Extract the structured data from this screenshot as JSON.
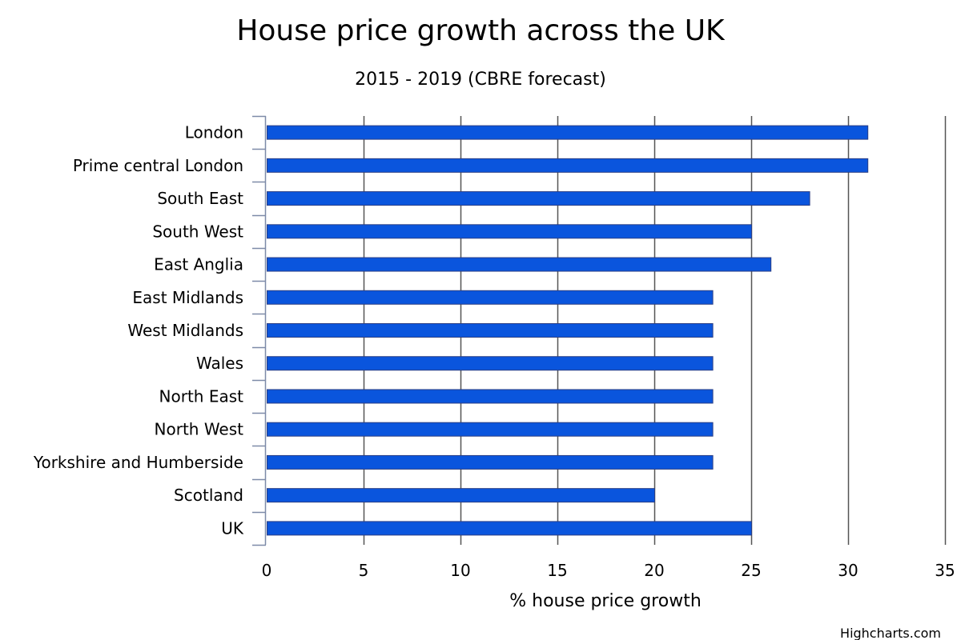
{
  "colors": {
    "bar_fill": "#0a55dd",
    "bar_stroke": "#2b3f85",
    "grid": "#555555",
    "axis": "#7d8aa8"
  },
  "credits": "Highcharts.com",
  "chart_data": {
    "type": "bar",
    "orientation": "horizontal",
    "title": "House price growth across the UK",
    "subtitle": "2015 - 2019 (CBRE forecast)",
    "xlabel": "% house price growth",
    "ylabel": "",
    "categories": [
      "London",
      "Prime central London",
      "South East",
      "South West",
      "East Anglia",
      "East Midlands",
      "West Midlands",
      "Wales",
      "North East",
      "North West",
      "Yorkshire and Humberside",
      "Scotland",
      "UK"
    ],
    "values": [
      31,
      31,
      28,
      25,
      26,
      23,
      23,
      23,
      23,
      23,
      23,
      20,
      25
    ],
    "xlim": [
      0,
      35
    ],
    "ticks": [
      0,
      5,
      10,
      15,
      20,
      25,
      30,
      35
    ],
    "grid": true,
    "legend": false
  }
}
